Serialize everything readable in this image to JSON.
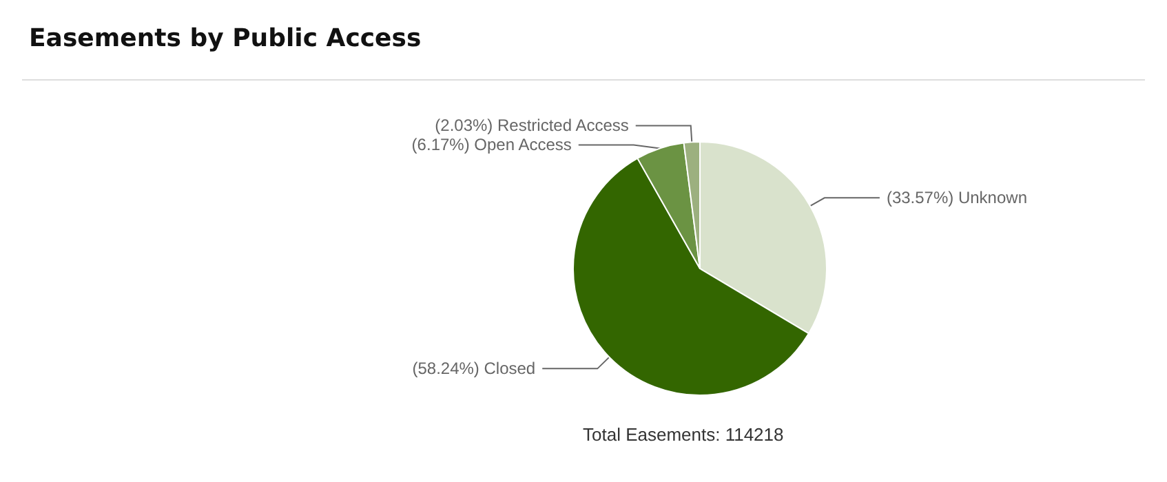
{
  "chart_data": {
    "type": "pie",
    "title": "Easements by Public Access",
    "categories": [
      "Unknown",
      "Closed",
      "Open Access",
      "Restricted Access"
    ],
    "values": [
      33.57,
      58.24,
      6.17,
      2.03
    ],
    "colors": [
      "#d9e2cc",
      "#336600",
      "#6b9343",
      "#9cb07f"
    ],
    "value_labels": [
      "(33.57%)",
      "(58.24%)",
      "(6.17%)",
      "(2.03%)"
    ],
    "annotations": [
      "Total Easements: 114218"
    ],
    "legend": false
  }
}
